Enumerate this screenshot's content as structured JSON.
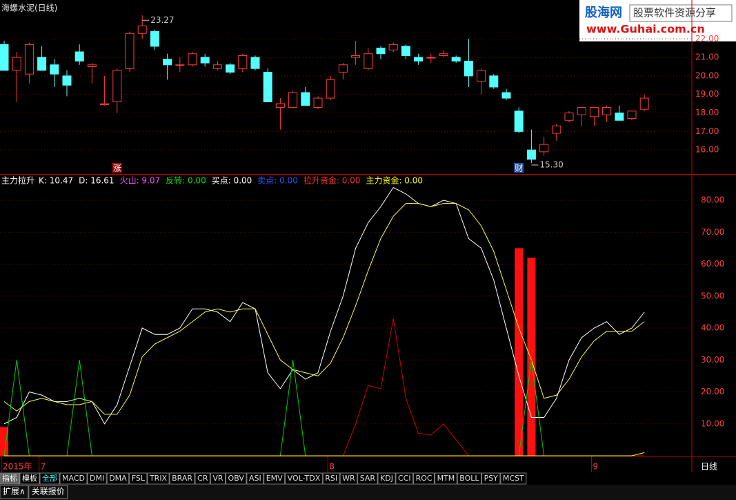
{
  "title": "海螺水泥(日线)",
  "logo": {
    "name": "股海网",
    "slogan": "股票软件资源分享",
    "url": "www.Guhai.com.cn"
  },
  "chart_data": [
    {
      "type": "candlestick",
      "up_color": "#ff3c3c",
      "down_color": "#54ffff",
      "open": [
        21.7,
        20.3,
        20.1,
        21.0,
        20.6,
        20.0,
        21.3,
        20.5,
        18.45,
        18.6,
        20.4,
        22.3,
        22.4,
        20.9,
        20.6,
        20.6,
        21.0,
        20.4,
        20.6,
        20.4,
        21.0,
        20.2,
        18.3,
        18.3,
        19.1,
        18.3,
        18.8,
        20.2,
        21.0,
        20.4,
        21.5,
        21.4,
        21.6,
        21.0,
        21.0,
        21.1,
        21.0,
        20.8,
        19.7,
        20.0,
        19.1,
        18.1,
        16.0,
        15.9,
        16.9,
        17.6,
        17.9,
        17.8,
        17.9,
        18.0,
        17.7,
        18.2
      ],
      "high": [
        21.9,
        21.3,
        21.8,
        21.6,
        20.9,
        20.3,
        21.7,
        20.7,
        20.0,
        20.4,
        22.4,
        23.27,
        22.5,
        21.2,
        21.0,
        21.3,
        21.2,
        20.8,
        20.7,
        21.2,
        21.1,
        20.4,
        18.8,
        19.2,
        19.4,
        18.9,
        20.0,
        20.7,
        21.9,
        21.5,
        21.6,
        21.8,
        21.7,
        21.2,
        21.2,
        21.4,
        21.1,
        22.0,
        20.4,
        20.1,
        19.3,
        18.3,
        17.1,
        16.7,
        17.4,
        18.1,
        18.3,
        18.3,
        18.4,
        18.4,
        18.1,
        19.0
      ],
      "low": [
        20.3,
        18.6,
        19.6,
        20.3,
        19.4,
        18.9,
        20.6,
        19.6,
        18.4,
        18.0,
        20.2,
        22.0,
        21.4,
        19.8,
        20.2,
        20.5,
        20.5,
        20.3,
        20.1,
        20.2,
        20.3,
        18.6,
        17.1,
        18.3,
        18.4,
        18.2,
        18.7,
        19.8,
        20.6,
        20.3,
        20.9,
        21.3,
        20.9,
        20.6,
        20.7,
        21.0,
        20.7,
        19.4,
        19.0,
        19.3,
        18.7,
        16.9,
        15.3,
        15.7,
        16.5,
        17.5,
        17.3,
        17.3,
        17.5,
        17.6,
        17.6,
        18.1
      ],
      "close": [
        20.3,
        21.0,
        21.7,
        20.3,
        20.1,
        19.5,
        20.8,
        20.6,
        18.5,
        20.3,
        22.3,
        22.7,
        21.6,
        20.6,
        20.6,
        21.2,
        20.7,
        20.6,
        20.2,
        21.1,
        20.4,
        18.6,
        18.5,
        19.1,
        18.4,
        18.8,
        19.8,
        20.6,
        21.1,
        21.2,
        21.2,
        21.7,
        21.1,
        20.8,
        21.0,
        21.2,
        20.8,
        20.0,
        20.3,
        19.4,
        18.8,
        17.0,
        15.5,
        16.3,
        17.3,
        18.0,
        18.3,
        18.3,
        18.3,
        17.6,
        18.1,
        18.8
      ],
      "ylim": [
        14.7,
        24.1
      ],
      "yticks": [
        {
          "value": 16,
          "label": "16.00"
        },
        {
          "value": 17,
          "label": "17.00"
        },
        {
          "value": 18,
          "label": "18.00"
        },
        {
          "value": 19,
          "label": "19.00"
        },
        {
          "value": 20,
          "label": "20.00"
        },
        {
          "value": 21,
          "label": "21.00"
        },
        {
          "value": 22,
          "label": "22.00"
        }
      ],
      "annotations": [
        {
          "label": "23.27",
          "at": 11,
          "side": "high"
        },
        {
          "label": "15.30",
          "at": 42,
          "side": "low"
        }
      ],
      "markers": [
        {
          "label": "涨",
          "at": 9,
          "color": "#a00000"
        },
        {
          "label": "财",
          "at": 41,
          "color": "#1e50a0"
        }
      ]
    },
    {
      "type": "line",
      "name": "主力拉升",
      "readout": [
        {
          "text": "K: 10.47",
          "color": "#ffffff"
        },
        {
          "text": "D: 16.61",
          "color": "#ffffff"
        },
        {
          "text": "火山: 9.07",
          "color": "#ff50ff"
        },
        {
          "text": "反转: 0.00",
          "color": "#00e000"
        },
        {
          "text": "买点: 0.00",
          "color": "#ffffff"
        },
        {
          "text": "卖点: 0.00",
          "color": "#3050ff"
        },
        {
          "text": "拉升资金: 0.00",
          "color": "#ff3030"
        },
        {
          "text": "主力资金: 0.00",
          "color": "#ffff00"
        }
      ],
      "series": [
        {
          "name": "火山",
          "style": "bar",
          "color": "#ff1010",
          "values": [
            9,
            0,
            0,
            0,
            0,
            0,
            0,
            0,
            0,
            0,
            0,
            0,
            0,
            0,
            0,
            0,
            0,
            0,
            0,
            0,
            0,
            0,
            0,
            0,
            0,
            0,
            0,
            0,
            0,
            0,
            0,
            0,
            0,
            0,
            0,
            0,
            0,
            0,
            0,
            0,
            0,
            65,
            62,
            0,
            0,
            0,
            0,
            0,
            0,
            0,
            0,
            0
          ]
        },
        {
          "name": "K",
          "color": "#ffffff",
          "values": [
            10,
            12,
            20,
            19,
            17,
            17,
            18,
            17,
            10,
            16,
            28,
            40,
            38,
            38,
            40,
            46,
            46,
            45,
            42,
            48,
            46,
            26,
            21,
            27,
            24,
            26,
            39,
            50,
            65,
            73,
            78,
            84,
            82,
            79,
            78,
            80,
            79,
            68,
            65,
            55,
            40,
            25,
            12,
            12,
            18,
            30,
            37,
            40,
            42,
            38,
            40,
            45
          ]
        },
        {
          "name": "D",
          "color": "#ffff40",
          "values": [
            17,
            14,
            17,
            18,
            17,
            16,
            16,
            17,
            13,
            13,
            19,
            31,
            35,
            37,
            39,
            42,
            45,
            46,
            45,
            46,
            46,
            38,
            30,
            27,
            26,
            25,
            29,
            37,
            47,
            58,
            68,
            75,
            79,
            79,
            78,
            79,
            79,
            77,
            72,
            64,
            52,
            40,
            30,
            18,
            19,
            24,
            31,
            36,
            39,
            39,
            39,
            42
          ]
        },
        {
          "name": "反转",
          "color": "#00d000",
          "values": [
            0,
            30,
            0,
            0,
            0,
            0,
            30,
            0,
            0,
            0,
            0,
            0,
            0,
            0,
            0,
            0,
            0,
            0,
            0,
            0,
            0,
            0,
            0,
            30,
            0,
            0,
            0,
            0,
            0,
            0,
            0,
            0,
            0,
            0,
            0,
            0,
            0,
            0,
            0,
            0,
            0,
            0,
            30,
            0,
            0,
            0,
            0,
            0,
            0,
            0,
            0,
            0
          ]
        },
        {
          "name": "拉升资金",
          "color": "#d00000",
          "values": [
            0,
            0,
            0,
            0,
            0,
            0,
            0,
            0,
            0,
            0,
            0,
            0,
            0,
            0,
            0,
            0,
            0,
            0,
            0,
            0,
            0,
            0,
            0,
            0,
            0,
            0,
            0,
            0,
            10,
            22,
            21,
            43,
            18,
            7,
            6.5,
            10,
            5,
            0,
            0,
            0,
            0,
            0,
            0,
            0,
            0,
            0,
            0,
            0,
            0,
            0,
            0,
            0
          ]
        },
        {
          "name": "主力资金",
          "color": "#ffff00",
          "values": [
            0,
            0,
            0,
            0,
            0,
            0,
            0,
            0,
            0,
            0,
            0,
            0,
            0,
            0,
            0,
            0,
            0,
            0,
            0,
            0,
            0,
            0,
            0,
            0,
            0,
            0,
            0,
            0,
            0,
            0,
            0,
            0,
            0,
            0,
            0,
            0,
            0,
            0,
            0,
            0,
            0,
            0,
            0,
            0,
            0,
            0,
            0,
            0,
            0,
            0,
            0,
            1
          ]
        }
      ],
      "ylim": [
        0,
        88
      ],
      "yticks": [
        {
          "value": 10,
          "label": "10.00"
        },
        {
          "value": 20,
          "label": "20.00"
        },
        {
          "value": 30,
          "label": "30.00"
        },
        {
          "value": 40,
          "label": "40.00"
        },
        {
          "value": 50,
          "label": "50.00"
        },
        {
          "value": 60,
          "label": "60.00"
        },
        {
          "value": 70,
          "label": "70.00"
        },
        {
          "value": 80,
          "label": "80.00"
        }
      ],
      "xticks": [
        {
          "value": 0,
          "label": "2015年"
        },
        {
          "value": 3,
          "label": "7"
        },
        {
          "value": 26,
          "label": "8"
        },
        {
          "value": 47,
          "label": "9"
        }
      ],
      "period": "日线"
    }
  ],
  "tabs": [
    "指标",
    "模板",
    "全部",
    "MACD",
    "DMI",
    "DMA",
    "FSL",
    "TRIX",
    "BRAR",
    "CR",
    "VR",
    "OBV",
    "ASI",
    "EMV",
    "VOL-TDX",
    "RSI",
    "WR",
    "SAR",
    "KDJ",
    "CCI",
    "ROC",
    "MTM",
    "BOLL",
    "PSY",
    "MCST"
  ],
  "footer": [
    "扩展∧",
    "关联报价"
  ]
}
